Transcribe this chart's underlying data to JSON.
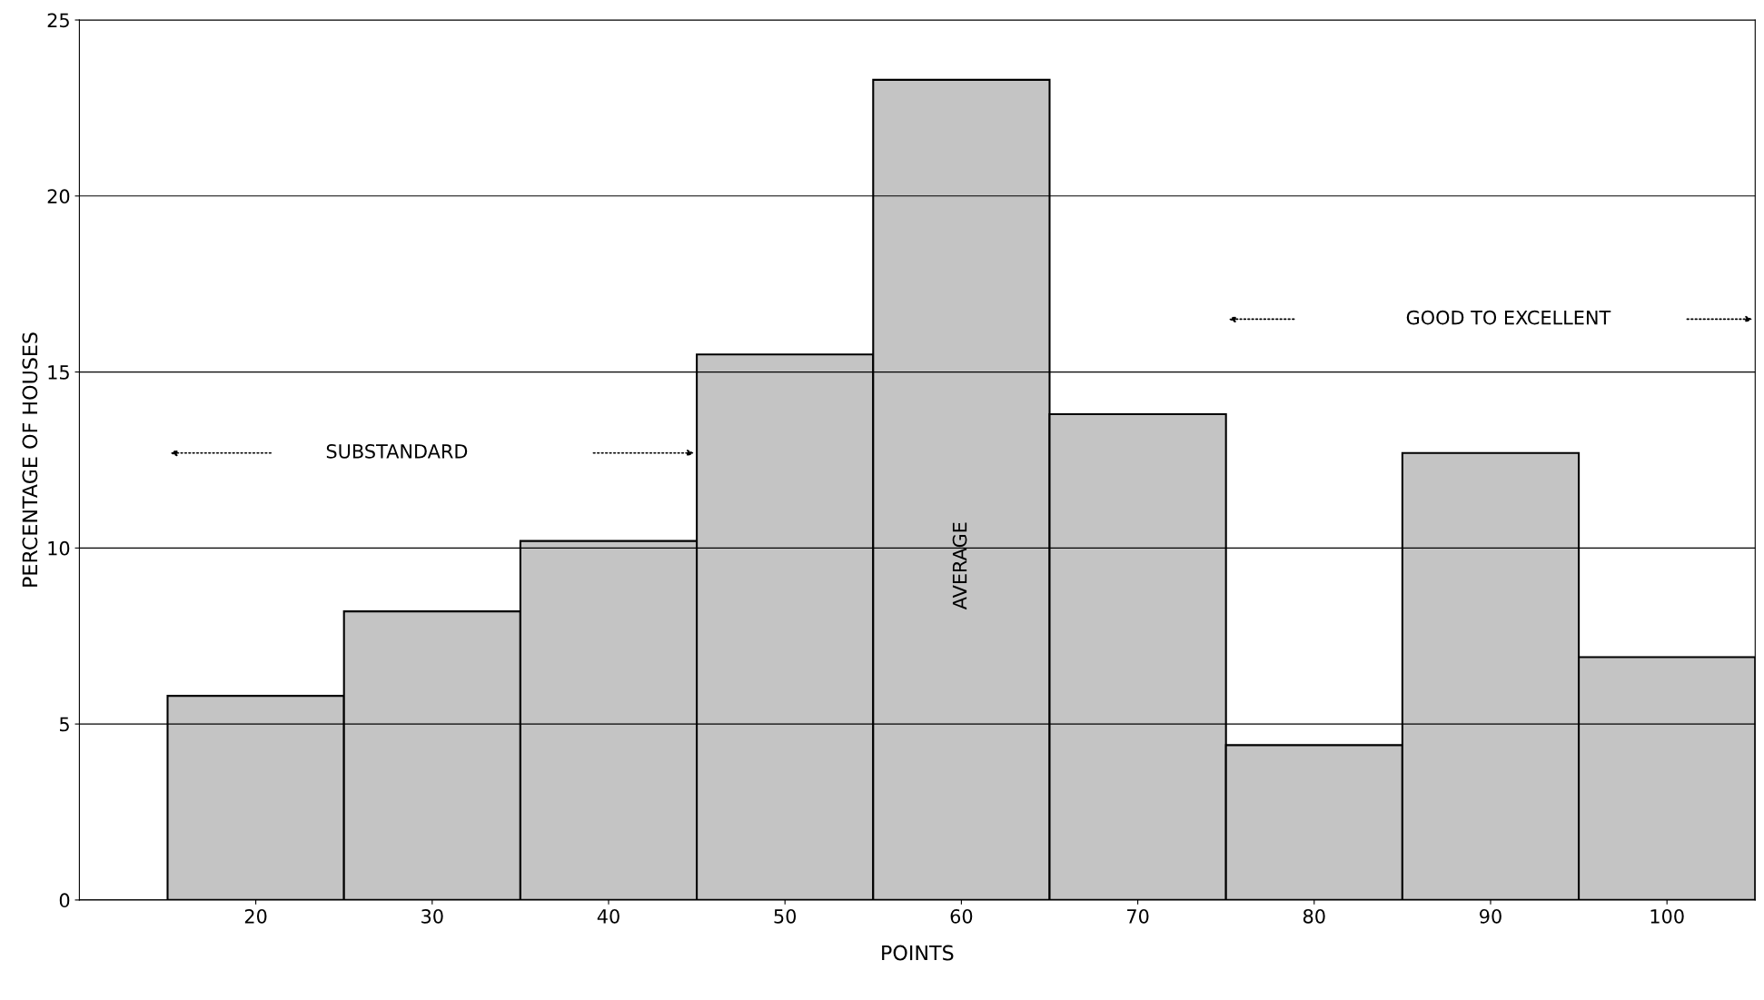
{
  "chart_data": {
    "type": "histogram",
    "xlabel": "POINTS",
    "ylabel": "PERCENTAGE OF HOUSES",
    "bins": [
      15,
      25,
      35,
      45,
      55,
      65,
      75,
      85,
      95,
      105
    ],
    "values": [
      5.8,
      8.2,
      10.2,
      15.5,
      23.3,
      13.8,
      4.4,
      12.7,
      6.9
    ],
    "color": "#c4c4c4",
    "xlim": [
      10,
      105
    ],
    "xticks": [
      20,
      30,
      40,
      50,
      60,
      70,
      80,
      90,
      100
    ],
    "ylim": [
      0,
      25
    ],
    "yticks": [
      0,
      5,
      10,
      15,
      20,
      25
    ],
    "grid": "y",
    "annotations": [
      "SUBSTANDARD",
      "AVERAGE",
      "GOOD TO EXCELLENT"
    ]
  }
}
